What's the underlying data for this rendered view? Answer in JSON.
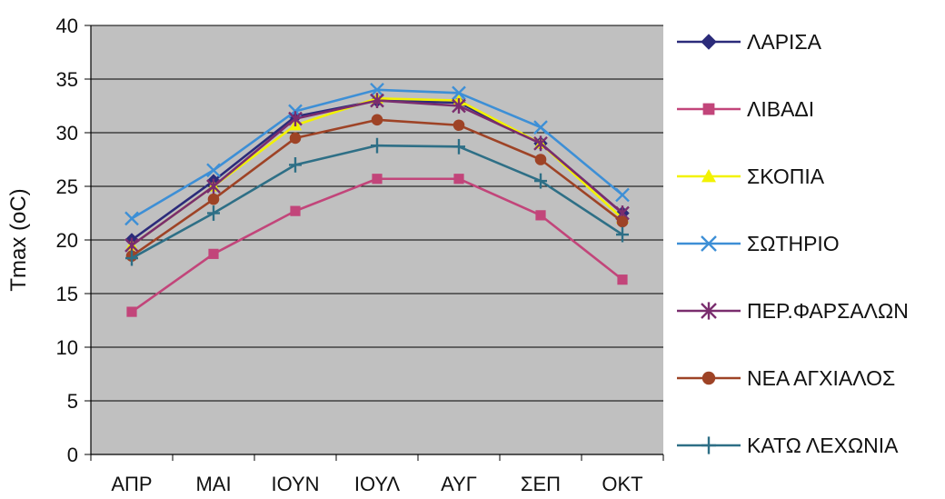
{
  "chart_data": {
    "type": "line",
    "title": "",
    "xlabel": "",
    "ylabel": "Tmax (oC)",
    "ylim": [
      0,
      40
    ],
    "yticks": [
      0,
      5,
      10,
      15,
      20,
      25,
      30,
      35,
      40
    ],
    "grid": true,
    "legend_position": "right",
    "plot_background": "#c0c0c0",
    "categories": [
      "ΑΠΡ",
      "ΜΑΙ",
      "ΙΟΥΝ",
      "ΙΟΥΛ",
      "ΑΥΓ",
      "ΣΕΠ",
      "ΟΚΤ"
    ],
    "series": [
      {
        "name": "ΛΑΡΙΣΑ",
        "color": "#2b2b7a",
        "marker": "diamond",
        "values": [
          20.0,
          25.5,
          31.5,
          33.0,
          32.8,
          29.0,
          22.5
        ]
      },
      {
        "name": "ΛΙΒΑΔΙ",
        "color": "#c2457a",
        "marker": "square",
        "values": [
          13.3,
          18.7,
          22.7,
          25.7,
          25.7,
          22.3,
          16.3
        ]
      },
      {
        "name": "ΣΚΟΠΙΑ",
        "color": "#f2f200",
        "marker": "triangle",
        "values": [
          19.5,
          25.0,
          30.7,
          33.2,
          33.0,
          29.0,
          22.0
        ]
      },
      {
        "name": "ΣΩΤΗΡΙΟ",
        "color": "#3d8fd6",
        "marker": "x",
        "values": [
          22.0,
          26.5,
          32.0,
          34.0,
          33.7,
          30.5,
          24.2
        ]
      },
      {
        "name": "ΠΕΡ.ΦΑΡΣΑΛΩΝ",
        "color": "#7a2d6e",
        "marker": "star",
        "values": [
          19.5,
          25.0,
          31.3,
          33.0,
          32.5,
          29.0,
          22.5
        ]
      },
      {
        "name": "ΝΕΑ ΑΓΧΙΑΛΟΣ",
        "color": "#9e4326",
        "marker": "circle",
        "values": [
          18.5,
          23.8,
          29.5,
          31.2,
          30.7,
          27.5,
          21.7
        ]
      },
      {
        "name": "ΚΑΤΩ ΛΕΧΩΝΙΑ",
        "color": "#2e6f86",
        "marker": "plus",
        "values": [
          18.3,
          22.5,
          27.0,
          28.8,
          28.7,
          25.5,
          20.5
        ]
      }
    ]
  }
}
